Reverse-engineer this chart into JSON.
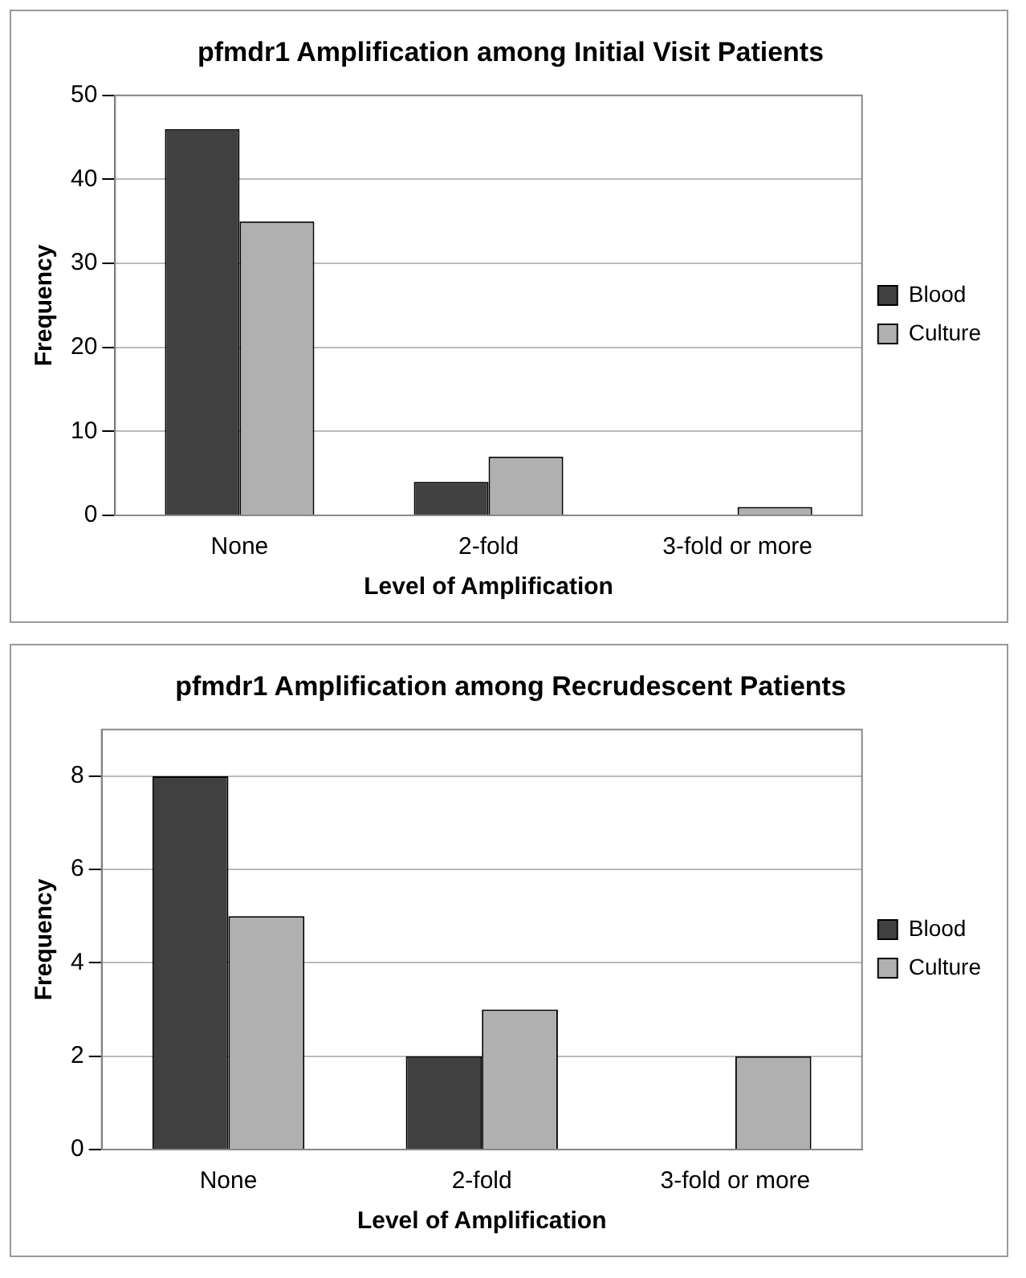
{
  "chart_data": [
    {
      "type": "bar",
      "title": "pfmdr1 Amplification among Initial Visit Patients",
      "xlabel": "Level of Amplification",
      "ylabel": "Frequency",
      "categories": [
        "None",
        "2-fold",
        "3-fold or more"
      ],
      "series": [
        {
          "name": "Blood",
          "color": "#404040",
          "values": [
            46,
            4,
            0
          ]
        },
        {
          "name": "Culture",
          "color": "#b0b0b0",
          "values": [
            35,
            7,
            1
          ]
        }
      ],
      "ylim": [
        0,
        50
      ],
      "yticks": [
        0,
        10,
        20,
        30,
        40,
        50
      ],
      "grid": "y",
      "legend": "right"
    },
    {
      "type": "bar",
      "title": "pfmdr1 Amplification among Recrudescent Patients",
      "xlabel": "Level of Amplification",
      "ylabel": "Frequency",
      "categories": [
        "None",
        "2-fold",
        "3-fold or more"
      ],
      "series": [
        {
          "name": "Blood",
          "color": "#404040",
          "values": [
            8,
            2,
            0
          ]
        },
        {
          "name": "Culture",
          "color": "#b0b0b0",
          "values": [
            5,
            3,
            2
          ]
        }
      ],
      "ylim": [
        0,
        9
      ],
      "yticks": [
        0,
        2,
        4,
        6,
        8
      ],
      "grid": "y",
      "legend": "right"
    }
  ]
}
